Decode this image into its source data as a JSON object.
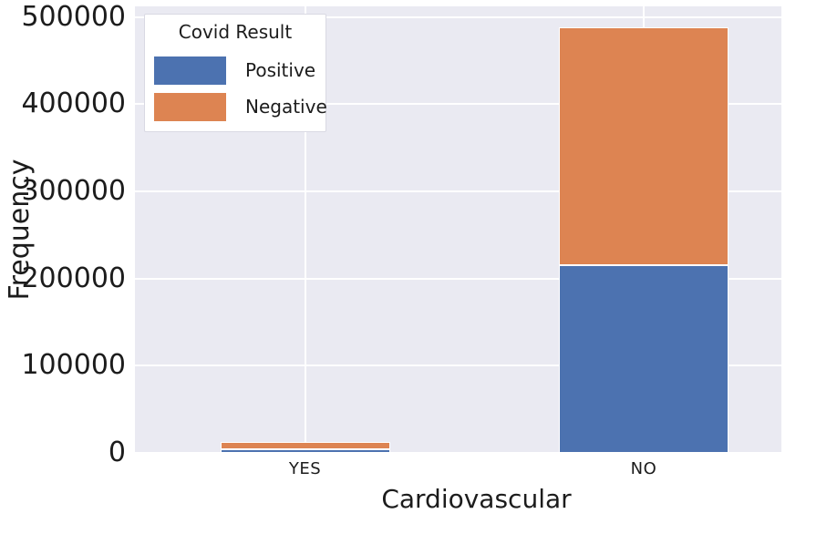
{
  "figure": {
    "xlabel": "Cardiovascular",
    "ylabel": "Frequency"
  },
  "legend": {
    "title": "Covid Result",
    "items": [
      {
        "label": "Positive",
        "color": "#4c72b0"
      },
      {
        "label": "Negative",
        "color": "#dd8452"
      }
    ]
  },
  "colors": {
    "plot_background": "#eaeaf2",
    "gridline": "#ffffff",
    "positive_blue": "#4c72b0",
    "negative_orange": "#dd8452",
    "text": "#1c1c1c"
  },
  "chart_data": {
    "type": "bar",
    "stacked": true,
    "categories": [
      "YES",
      "NO"
    ],
    "series": [
      {
        "name": "Positive",
        "color": "#4c72b0",
        "values": [
          4700,
          215500
        ]
      },
      {
        "name": "Negative",
        "color": "#dd8452",
        "values": [
          7800,
          272000
        ]
      }
    ],
    "title": "",
    "xlabel": "Cardiovascular",
    "ylabel": "Frequency",
    "ylim": [
      0,
      512000
    ],
    "yticks": [
      0,
      100000,
      200000,
      300000,
      400000,
      500000
    ],
    "ytick_labels": [
      "0",
      "100000",
      "200000",
      "300000",
      "400000",
      "500000"
    ],
    "grid": true,
    "legend_title": "Covid Result",
    "legend_labels": [
      "Positive",
      "Negative"
    ],
    "legend_position": "upper left"
  }
}
